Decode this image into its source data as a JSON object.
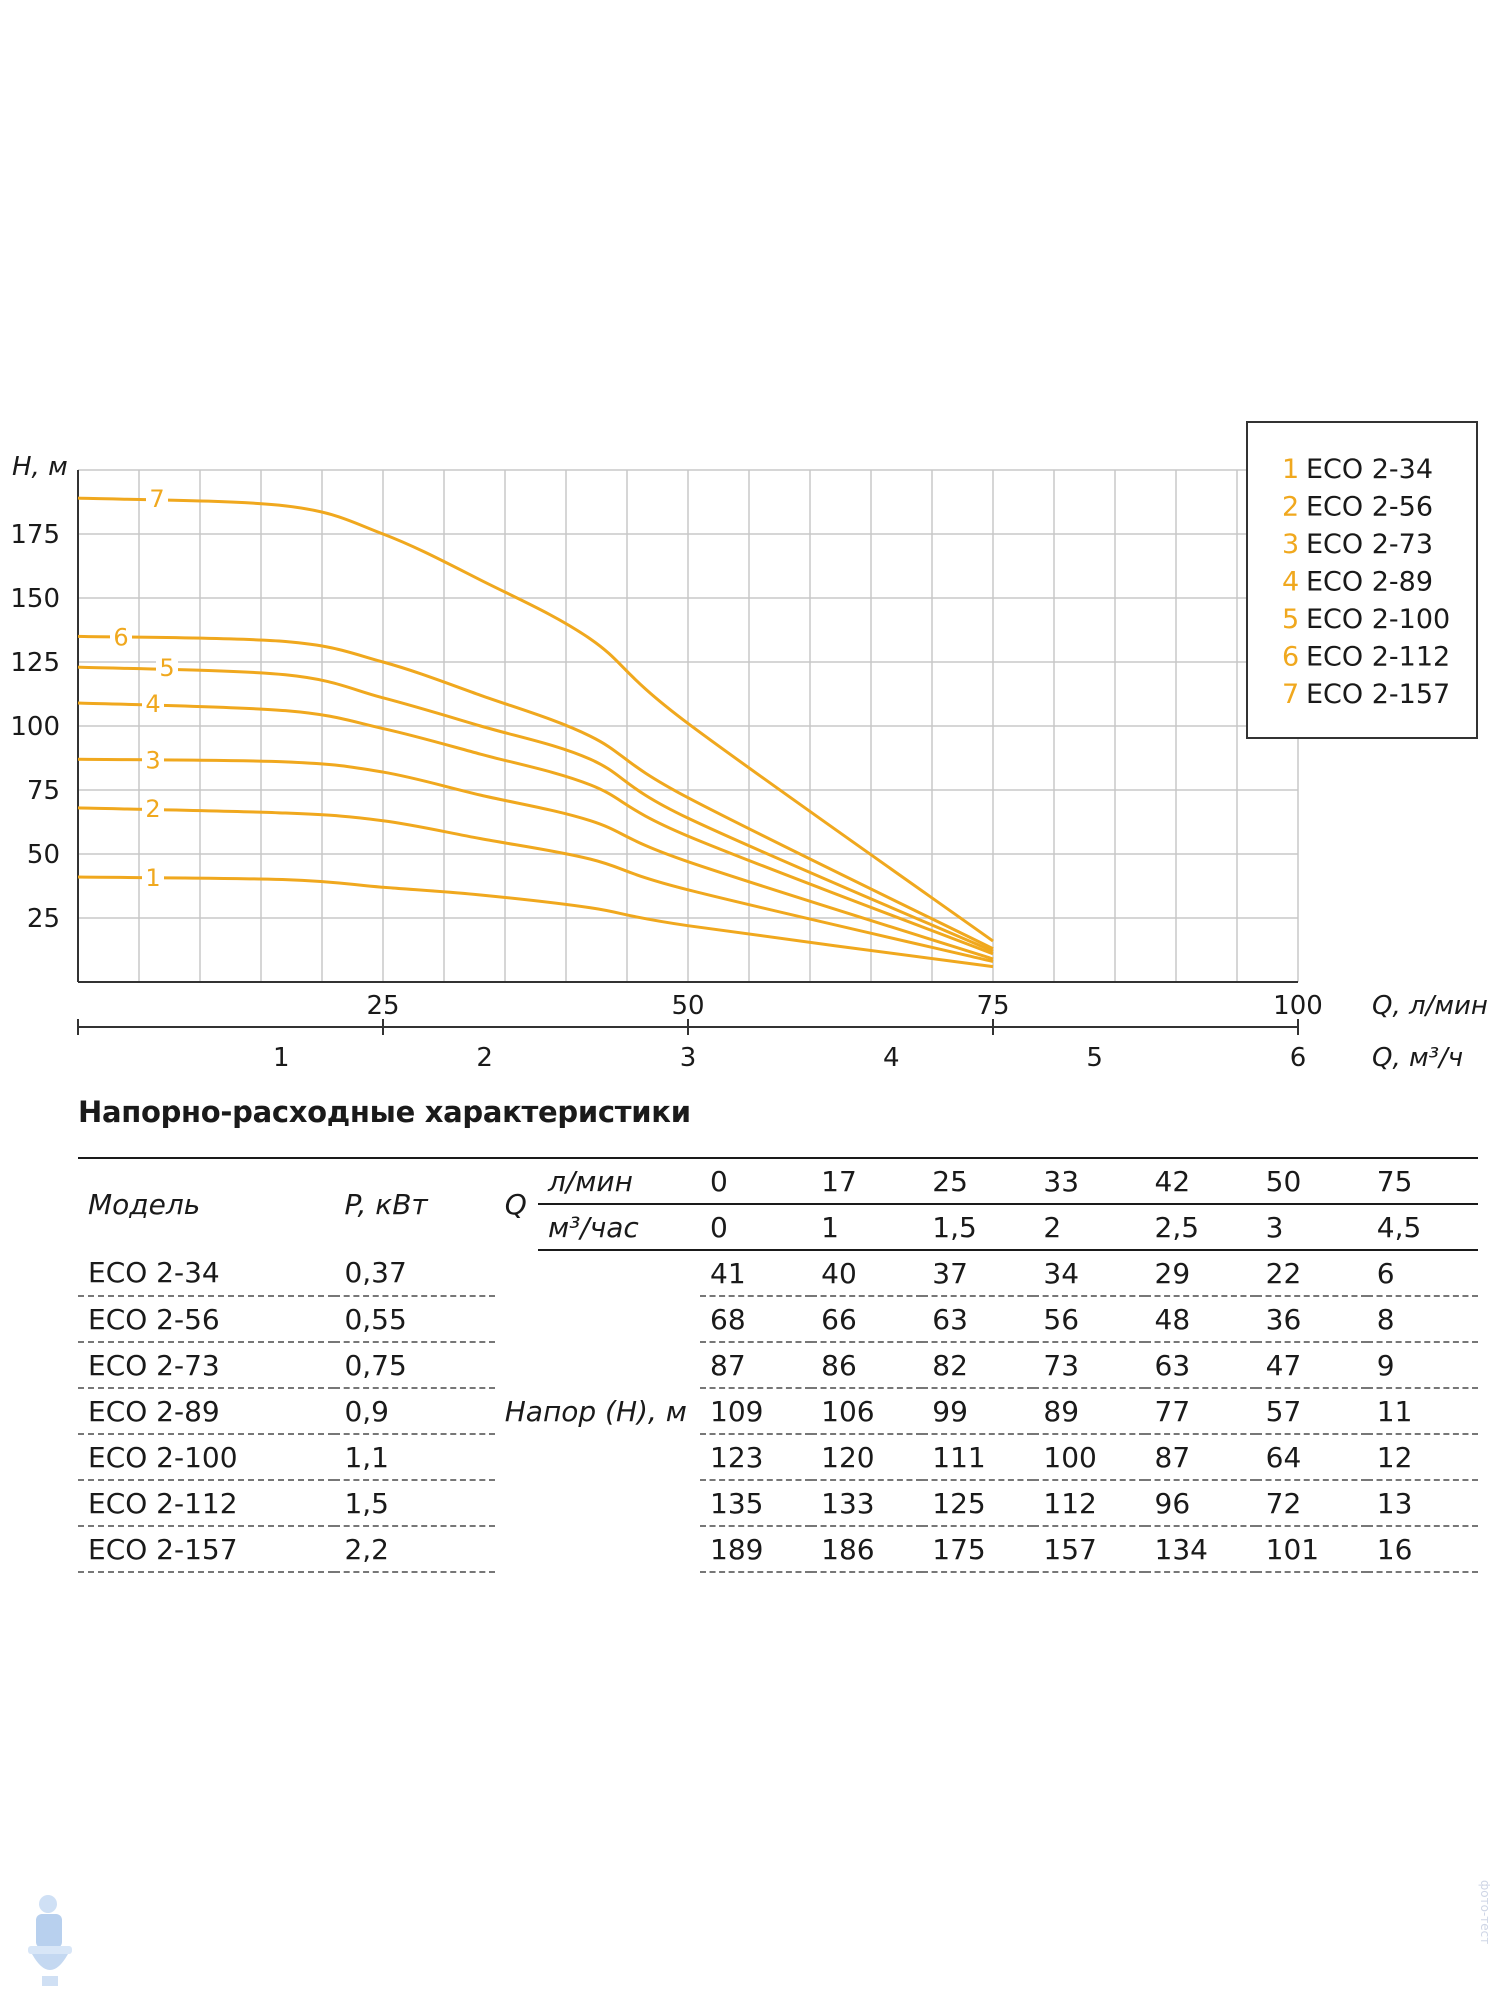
{
  "chart_data": {
    "type": "line",
    "title": "",
    "ylabel": "H, м",
    "xlabel": "Q, л/мин",
    "xlabel2": "Q, м³/ч",
    "xlim": [
      0,
      100
    ],
    "ylim": [
      0,
      200
    ],
    "yticks": [
      "25",
      "50",
      "75",
      "100",
      "125",
      "150",
      "175"
    ],
    "xticks": [
      "25",
      "50",
      "75",
      "100"
    ],
    "xticks2": [
      "1",
      "2",
      "3",
      "4",
      "5",
      "6"
    ],
    "grid": true,
    "legend_position": "top-right",
    "x": [
      0,
      17,
      25,
      33,
      42,
      50,
      75
    ],
    "series": [
      {
        "id": "1",
        "name": "ECO 2-34",
        "values": [
          41,
          40,
          37,
          34,
          29,
          22,
          6
        ]
      },
      {
        "id": "2",
        "name": "ECO 2-56",
        "values": [
          68,
          66,
          63,
          56,
          48,
          36,
          8
        ]
      },
      {
        "id": "3",
        "name": "ECO 2-73",
        "values": [
          87,
          86,
          82,
          73,
          63,
          47,
          9
        ]
      },
      {
        "id": "4",
        "name": "ECO 2-89",
        "values": [
          109,
          106,
          99,
          89,
          77,
          57,
          11
        ]
      },
      {
        "id": "5",
        "name": "ECO 2-100",
        "values": [
          123,
          120,
          111,
          100,
          87,
          64,
          12
        ]
      },
      {
        "id": "6",
        "name": "ECO 2-112",
        "values": [
          135,
          133,
          125,
          112,
          96,
          72,
          13
        ]
      },
      {
        "id": "7",
        "name": "ECO 2-157",
        "values": [
          189,
          186,
          175,
          157,
          134,
          101,
          16
        ]
      }
    ],
    "colors": {
      "curve": "#f0a81e",
      "grid": "#c8c8c8",
      "axis": "#333333"
    }
  },
  "table": {
    "title": "Напорно-расходные характеристики",
    "col_model": "Модель",
    "col_power": "P, кВт",
    "col_q": "Q",
    "unit_lmin": "л/мин",
    "unit_m3h": "м³/час",
    "q_lmin": [
      "0",
      "17",
      "25",
      "33",
      "42",
      "50",
      "75"
    ],
    "q_m3h": [
      "0",
      "1",
      "1,5",
      "2",
      "2,5",
      "3",
      "4,5"
    ],
    "head_label": "Напор (H), м",
    "rows": [
      {
        "model": "ECO 2-34",
        "power": "0,37",
        "h": [
          "41",
          "40",
          "37",
          "34",
          "29",
          "22",
          "6"
        ]
      },
      {
        "model": "ECO 2-56",
        "power": "0,55",
        "h": [
          "68",
          "66",
          "63",
          "56",
          "48",
          "36",
          "8"
        ]
      },
      {
        "model": "ECO 2-73",
        "power": "0,75",
        "h": [
          "87",
          "86",
          "82",
          "73",
          "63",
          "47",
          "9"
        ]
      },
      {
        "model": "ECO 2-89",
        "power": "0,9",
        "h": [
          "109",
          "106",
          "99",
          "89",
          "77",
          "57",
          "11"
        ]
      },
      {
        "model": "ECO 2-100",
        "power": "1,1",
        "h": [
          "123",
          "120",
          "111",
          "100",
          "87",
          "64",
          "12"
        ]
      },
      {
        "model": "ECO 2-112",
        "power": "1,5",
        "h": [
          "135",
          "133",
          "125",
          "112",
          "96",
          "72",
          "13"
        ]
      },
      {
        "model": "ECO 2-157",
        "power": "2,2",
        "h": [
          "189",
          "186",
          "175",
          "157",
          "134",
          "101",
          "16"
        ]
      }
    ]
  },
  "side_mark": "фото-тест",
  "watermark_icon": "plumber-mascot-icon"
}
